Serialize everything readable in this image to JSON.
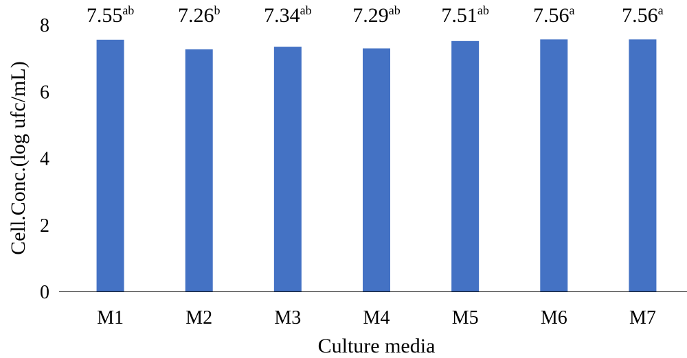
{
  "chart_data": {
    "type": "bar",
    "title": "",
    "xlabel": "Culture media",
    "ylabel": "Cell.Conc.(log ufc/mL)",
    "categories": [
      "M1",
      "M2",
      "M3",
      "M4",
      "M5",
      "M6",
      "M7"
    ],
    "values": [
      7.55,
      7.26,
      7.34,
      7.29,
      7.51,
      7.56,
      7.56
    ],
    "value_labels": [
      "7.55",
      "7.26",
      "7.34",
      "7.29",
      "7.51",
      "7.56",
      "7.56"
    ],
    "significance_letters": [
      "ab",
      "b",
      "ab",
      "ab",
      "ab",
      "a",
      "a"
    ],
    "yticks": [
      "0",
      "2",
      "4",
      "6",
      "8"
    ],
    "ylim": [
      0,
      8
    ],
    "grid": false,
    "legend": "none",
    "bar_color": "#4472C4",
    "axis_color": "#000000"
  }
}
